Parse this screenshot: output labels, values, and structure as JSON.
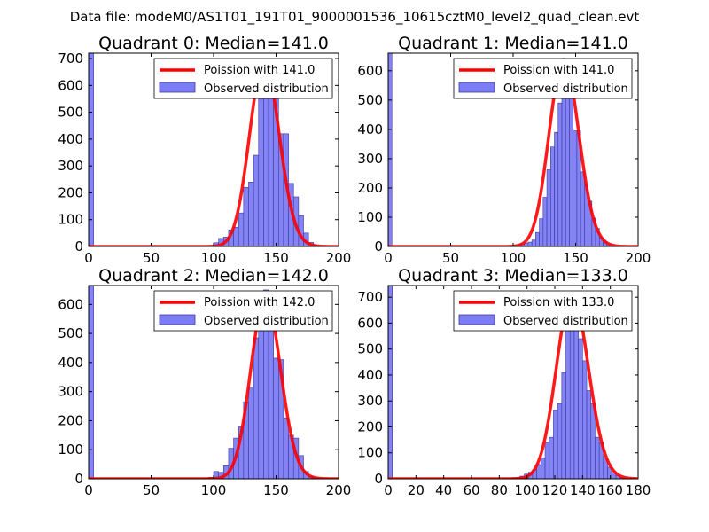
{
  "figure": {
    "suptitle": "Data file: modeM0/AS1T01_191T01_9000001536_10615cztM0_level2_quad_clean.evt",
    "colors": {
      "bar_fill": "#7c7cf6",
      "bar_edge": "#3a3a9a",
      "curve": "#ff0000",
      "axis": "#000000"
    }
  },
  "chart_data": [
    {
      "type": "bar",
      "title": "Quadrant 0: Median=141.0",
      "xlim": [
        0,
        200
      ],
      "ylim": [
        0,
        720
      ],
      "xticks": [
        0,
        50,
        100,
        150,
        200
      ],
      "yticks": [
        0,
        100,
        200,
        300,
        400,
        500,
        600,
        700
      ],
      "bin_width": 4,
      "bins": [
        [
          0,
          720
        ],
        [
          96,
          3
        ],
        [
          100,
          14
        ],
        [
          104,
          30
        ],
        [
          108,
          35
        ],
        [
          112,
          62
        ],
        [
          116,
          72
        ],
        [
          120,
          125
        ],
        [
          124,
          220
        ],
        [
          128,
          240
        ],
        [
          132,
          340
        ],
        [
          136,
          570
        ],
        [
          140,
          670
        ],
        [
          144,
          640
        ],
        [
          148,
          575
        ],
        [
          152,
          420
        ],
        [
          156,
          420
        ],
        [
          160,
          235
        ],
        [
          164,
          185
        ],
        [
          168,
          115
        ],
        [
          172,
          50
        ],
        [
          176,
          15
        ],
        [
          180,
          5
        ]
      ],
      "curve": {
        "label": "Poission with 141.0",
        "mean": 141.0,
        "peak": 688
      },
      "legend": {
        "line_label": "Poission with 141.0",
        "bar_label": "Observed distribution",
        "loc": "upper right"
      }
    },
    {
      "type": "bar",
      "title": "Quadrant 1: Median=141.0",
      "xlim": [
        0,
        200
      ],
      "ylim": [
        0,
        660
      ],
      "xticks": [
        0,
        50,
        100,
        150,
        200
      ],
      "yticks": [
        0,
        100,
        200,
        300,
        400,
        500,
        600
      ],
      "bin_width": 3,
      "bins": [
        [
          0,
          660
        ],
        [
          97,
          2
        ],
        [
          100,
          5
        ],
        [
          103,
          6
        ],
        [
          106,
          8
        ],
        [
          109,
          12
        ],
        [
          112,
          15
        ],
        [
          115,
          22
        ],
        [
          118,
          48
        ],
        [
          121,
          95
        ],
        [
          124,
          168
        ],
        [
          127,
          262
        ],
        [
          130,
          340
        ],
        [
          133,
          390
        ],
        [
          136,
          490
        ],
        [
          139,
          585
        ],
        [
          142,
          640
        ],
        [
          145,
          525
        ],
        [
          148,
          395
        ],
        [
          151,
          395
        ],
        [
          154,
          255
        ],
        [
          157,
          210
        ],
        [
          160,
          155
        ],
        [
          163,
          97
        ],
        [
          166,
          62
        ],
        [
          169,
          30
        ],
        [
          172,
          15
        ],
        [
          175,
          6
        ],
        [
          178,
          3
        ]
      ],
      "curve": {
        "label": "Poission with 141.0",
        "mean": 141.0,
        "peak": 638
      },
      "legend": {
        "line_label": "Poission with 141.0",
        "bar_label": "Observed distribution",
        "loc": "upper right"
      }
    },
    {
      "type": "bar",
      "title": "Quadrant 2: Median=142.0",
      "xlim": [
        0,
        200
      ],
      "ylim": [
        0,
        665
      ],
      "xticks": [
        0,
        50,
        100,
        150,
        200
      ],
      "yticks": [
        0,
        100,
        200,
        300,
        400,
        500,
        600
      ],
      "bin_width": 4,
      "bins": [
        [
          0,
          665
        ],
        [
          92,
          2
        ],
        [
          96,
          5
        ],
        [
          100,
          25
        ],
        [
          104,
          22
        ],
        [
          108,
          45
        ],
        [
          112,
          105
        ],
        [
          116,
          140
        ],
        [
          120,
          180
        ],
        [
          124,
          265
        ],
        [
          128,
          315
        ],
        [
          132,
          485
        ],
        [
          136,
          580
        ],
        [
          140,
          650
        ],
        [
          144,
          600
        ],
        [
          148,
          415
        ],
        [
          152,
          410
        ],
        [
          156,
          210
        ],
        [
          160,
          150
        ],
        [
          164,
          140
        ],
        [
          168,
          80
        ],
        [
          172,
          25
        ],
        [
          176,
          8
        ],
        [
          180,
          3
        ]
      ],
      "curve": {
        "label": "Poission with 142.0",
        "mean": 142.0,
        "peak": 622
      },
      "legend": {
        "line_label": "Poission with 142.0",
        "bar_label": "Observed distribution",
        "loc": "upper right"
      }
    },
    {
      "type": "bar",
      "title": "Quadrant 3: Median=133.0",
      "xlim": [
        0,
        180
      ],
      "ylim": [
        0,
        745
      ],
      "xticks": [
        0,
        20,
        40,
        60,
        80,
        100,
        120,
        140,
        160,
        180
      ],
      "yticks": [
        0,
        100,
        200,
        300,
        400,
        500,
        600,
        700
      ],
      "bin_width": 3,
      "bins": [
        [
          0,
          745
        ],
        [
          89,
          2
        ],
        [
          92,
          5
        ],
        [
          95,
          10
        ],
        [
          98,
          18
        ],
        [
          101,
          25
        ],
        [
          104,
          35
        ],
        [
          107,
          55
        ],
        [
          110,
          80
        ],
        [
          113,
          140
        ],
        [
          116,
          160
        ],
        [
          119,
          265
        ],
        [
          122,
          290
        ],
        [
          125,
          410
        ],
        [
          128,
          590
        ],
        [
          131,
          640
        ],
        [
          134,
          700
        ],
        [
          137,
          540
        ],
        [
          140,
          455
        ],
        [
          143,
          340
        ],
        [
          146,
          290
        ],
        [
          149,
          160
        ],
        [
          152,
          140
        ],
        [
          155,
          80
        ],
        [
          158,
          45
        ],
        [
          161,
          22
        ],
        [
          164,
          12
        ],
        [
          167,
          5
        ]
      ],
      "curve": {
        "label": "Poission with 133.0",
        "mean": 133.0,
        "peak": 709
      },
      "legend": {
        "line_label": "Poission with 133.0",
        "bar_label": "Observed distribution",
        "loc": "upper right"
      }
    }
  ]
}
